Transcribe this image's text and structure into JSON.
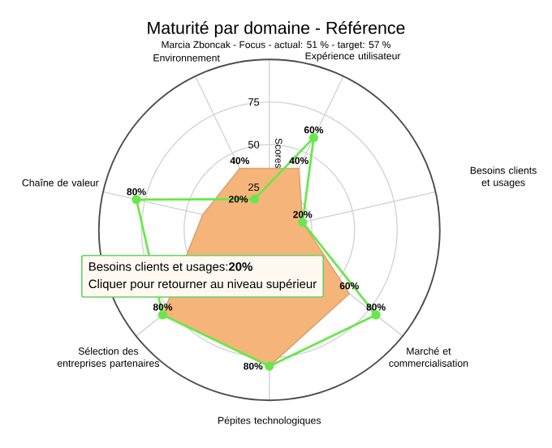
{
  "chart_data": {
    "type": "radar",
    "title": "Maturité par domaine - Référence",
    "subtitle": "Marcia Zboncak - Focus - actual: 51 % - target: 57 %",
    "ylabel": "Scores",
    "categories": [
      "Expérience utilisateur",
      "Besoins clients et usages",
      "Marché et commercialisation",
      "Pépites technologiques",
      "Sélection des entreprises partenaires",
      "Chaîne de valeur",
      "Environnement"
    ],
    "series": [
      {
        "color": "#f5b57a",
        "marker": "none",
        "values": [
          40,
          20,
          60,
          80,
          80,
          40,
          40
        ],
        "value_labels": [
          "40%",
          null,
          "60%",
          null,
          null,
          null,
          "40%"
        ]
      },
      {
        "color": "#66e84a",
        "marker": "circle",
        "values": [
          60,
          20,
          80,
          80,
          80,
          80,
          20
        ],
        "value_labels": [
          "60%",
          "20%",
          "80%",
          "80%",
          "80%",
          "80%",
          "20%"
        ]
      }
    ],
    "ylim": [
      0,
      100
    ],
    "yticks": [
      25,
      50,
      75
    ],
    "grid": true,
    "annotations": [
      "Besoins clients et usages:**20%**",
      "Cliquer pour retourner au niveau supérieur"
    ]
  }
}
